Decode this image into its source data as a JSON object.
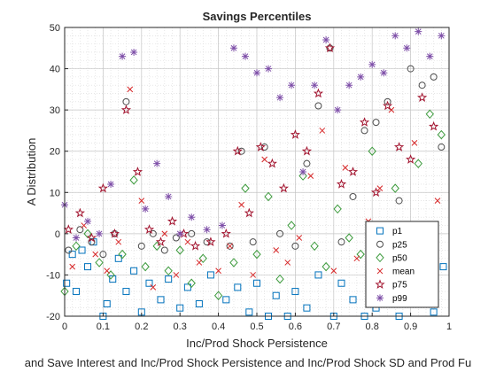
{
  "chart_data": {
    "type": "scatter",
    "title": "Savings Percentiles",
    "xlabel": "Inc/Prod Shock Persistence",
    "ylabel": "A Distribution",
    "caption": "and Save Interest and Inc/Prod Shock Persistence and Inc/Prod Shock SD and Prod Fu",
    "xlim": [
      0,
      1
    ],
    "ylim": [
      -20,
      50
    ],
    "xticks": [
      "0",
      "0.1",
      "0.2",
      "0.3",
      "0.4",
      "0.5",
      "0.6",
      "0.7",
      "0.8",
      "0.9",
      "1"
    ],
    "yticks": [
      "-20",
      "-10",
      "0",
      "10",
      "20",
      "30",
      "40",
      "50"
    ],
    "grid": "on, with minor grid",
    "legend_position": "bottom-right inside axes",
    "series": [
      {
        "name": "p1",
        "marker": "square",
        "color": "#0072BD",
        "values": [
          [
            0.005,
            -12
          ],
          [
            0.02,
            -5
          ],
          [
            0.03,
            -14
          ],
          [
            0.045,
            -4
          ],
          [
            0.06,
            -8
          ],
          [
            0.075,
            -2
          ],
          [
            0.1,
            -20
          ],
          [
            0.11,
            -17
          ],
          [
            0.125,
            -11
          ],
          [
            0.14,
            -6
          ],
          [
            0.16,
            -14
          ],
          [
            0.18,
            -9
          ],
          [
            0.2,
            -19
          ],
          [
            0.22,
            -12
          ],
          [
            0.25,
            -16
          ],
          [
            0.27,
            -11
          ],
          [
            0.3,
            -18
          ],
          [
            0.32,
            -13
          ],
          [
            0.35,
            -17
          ],
          [
            0.38,
            -10
          ],
          [
            0.42,
            -16
          ],
          [
            0.45,
            -13
          ],
          [
            0.48,
            -19
          ],
          [
            0.5,
            -12
          ],
          [
            0.53,
            -20
          ],
          [
            0.55,
            -15
          ],
          [
            0.58,
            -20
          ],
          [
            0.6,
            -14
          ],
          [
            0.63,
            -18
          ],
          [
            0.66,
            -10
          ],
          [
            0.7,
            -20
          ],
          [
            0.72,
            -12
          ],
          [
            0.75,
            -16
          ],
          [
            0.78,
            -20
          ],
          [
            0.81,
            -18
          ],
          [
            0.84,
            -13
          ],
          [
            0.87,
            -20
          ],
          [
            0.9,
            -16
          ],
          [
            0.93,
            -12
          ],
          [
            0.96,
            -19
          ],
          [
            0.985,
            -8
          ]
        ]
      },
      {
        "name": "p25",
        "marker": "circle",
        "color": "#4D4D4D",
        "values": [
          [
            0.01,
            -4
          ],
          [
            0.04,
            1
          ],
          [
            0.07,
            -2
          ],
          [
            0.1,
            -5
          ],
          [
            0.13,
            0
          ],
          [
            0.16,
            32
          ],
          [
            0.2,
            -3
          ],
          [
            0.23,
            0
          ],
          [
            0.26,
            -4
          ],
          [
            0.29,
            -1
          ],
          [
            0.33,
            0
          ],
          [
            0.37,
            -2
          ],
          [
            0.43,
            -3
          ],
          [
            0.46,
            20
          ],
          [
            0.49,
            -2
          ],
          [
            0.52,
            21
          ],
          [
            0.56,
            0
          ],
          [
            0.6,
            -3
          ],
          [
            0.63,
            17
          ],
          [
            0.66,
            31
          ],
          [
            0.69,
            45
          ],
          [
            0.72,
            -2
          ],
          [
            0.75,
            9
          ],
          [
            0.78,
            25
          ],
          [
            0.81,
            27
          ],
          [
            0.84,
            32
          ],
          [
            0.87,
            8
          ],
          [
            0.9,
            40
          ],
          [
            0.93,
            36
          ],
          [
            0.96,
            38
          ],
          [
            0.98,
            21
          ]
        ]
      },
      {
        "name": "p50",
        "marker": "diamond",
        "color": "#3C9A3C",
        "values": [
          [
            0.0,
            -14
          ],
          [
            0.03,
            -3
          ],
          [
            0.06,
            0
          ],
          [
            0.09,
            -7
          ],
          [
            0.12,
            -10
          ],
          [
            0.15,
            -5
          ],
          [
            0.18,
            13
          ],
          [
            0.21,
            -8
          ],
          [
            0.24,
            -3
          ],
          [
            0.27,
            -9
          ],
          [
            0.3,
            -4
          ],
          [
            0.33,
            -12
          ],
          [
            0.36,
            -6
          ],
          [
            0.4,
            -15
          ],
          [
            0.44,
            -7
          ],
          [
            0.47,
            11
          ],
          [
            0.5,
            -5
          ],
          [
            0.53,
            9
          ],
          [
            0.56,
            -11
          ],
          [
            0.59,
            2
          ],
          [
            0.62,
            14
          ],
          [
            0.65,
            -3
          ],
          [
            0.68,
            -8
          ],
          [
            0.71,
            6
          ],
          [
            0.74,
            -1
          ],
          [
            0.77,
            -5
          ],
          [
            0.8,
            20
          ],
          [
            0.83,
            -10
          ],
          [
            0.86,
            11
          ],
          [
            0.89,
            -3
          ],
          [
            0.92,
            17
          ],
          [
            0.95,
            29
          ],
          [
            0.98,
            24
          ]
        ]
      },
      {
        "name": "mean",
        "marker": "x",
        "color": "#D62728",
        "values": [
          [
            0.02,
            -8
          ],
          [
            0.05,
            2
          ],
          [
            0.08,
            -5
          ],
          [
            0.11,
            -9
          ],
          [
            0.14,
            -2
          ],
          [
            0.17,
            35
          ],
          [
            0.2,
            8
          ],
          [
            0.23,
            -13
          ],
          [
            0.26,
            0
          ],
          [
            0.29,
            -10
          ],
          [
            0.32,
            -2
          ],
          [
            0.35,
            -7
          ],
          [
            0.4,
            -9
          ],
          [
            0.43,
            -3
          ],
          [
            0.46,
            7
          ],
          [
            0.49,
            -10
          ],
          [
            0.52,
            18
          ],
          [
            0.55,
            -4
          ],
          [
            0.58,
            -7
          ],
          [
            0.61,
            -1
          ],
          [
            0.64,
            14
          ],
          [
            0.67,
            25
          ],
          [
            0.7,
            -9
          ],
          [
            0.73,
            16
          ],
          [
            0.76,
            -6
          ],
          [
            0.79,
            3
          ],
          [
            0.82,
            11
          ],
          [
            0.85,
            30
          ],
          [
            0.88,
            -4
          ],
          [
            0.91,
            22
          ],
          [
            0.94,
            -11
          ],
          [
            0.97,
            8
          ]
        ]
      },
      {
        "name": "p75",
        "marker": "pentagram",
        "color": "#A2142F",
        "values": [
          [
            0.01,
            1
          ],
          [
            0.04,
            5
          ],
          [
            0.07,
            -1
          ],
          [
            0.1,
            11
          ],
          [
            0.13,
            0
          ],
          [
            0.16,
            30
          ],
          [
            0.19,
            15
          ],
          [
            0.22,
            1
          ],
          [
            0.25,
            -2
          ],
          [
            0.28,
            3
          ],
          [
            0.31,
            0
          ],
          [
            0.34,
            -3
          ],
          [
            0.38,
            -2
          ],
          [
            0.42,
            0
          ],
          [
            0.45,
            20
          ],
          [
            0.48,
            5
          ],
          [
            0.51,
            21
          ],
          [
            0.54,
            17
          ],
          [
            0.57,
            11
          ],
          [
            0.6,
            24
          ],
          [
            0.63,
            20
          ],
          [
            0.66,
            34
          ],
          [
            0.69,
            45
          ],
          [
            0.72,
            12
          ],
          [
            0.75,
            15
          ],
          [
            0.78,
            27
          ],
          [
            0.81,
            10
          ],
          [
            0.84,
            31
          ],
          [
            0.87,
            21
          ],
          [
            0.9,
            18
          ],
          [
            0.93,
            33
          ],
          [
            0.96,
            26
          ]
        ]
      },
      {
        "name": "p99",
        "marker": "asterisk",
        "color": "#7E4FA8",
        "values": [
          [
            0.0,
            7
          ],
          [
            0.03,
            -1
          ],
          [
            0.06,
            3
          ],
          [
            0.09,
            0
          ],
          [
            0.12,
            12
          ],
          [
            0.15,
            43
          ],
          [
            0.18,
            44
          ],
          [
            0.21,
            6
          ],
          [
            0.24,
            17
          ],
          [
            0.27,
            9
          ],
          [
            0.3,
            0
          ],
          [
            0.33,
            4
          ],
          [
            0.37,
            1
          ],
          [
            0.41,
            2
          ],
          [
            0.44,
            45
          ],
          [
            0.47,
            43
          ],
          [
            0.5,
            39
          ],
          [
            0.53,
            40
          ],
          [
            0.56,
            33
          ],
          [
            0.59,
            36
          ],
          [
            0.62,
            15
          ],
          [
            0.65,
            36
          ],
          [
            0.68,
            47
          ],
          [
            0.71,
            30
          ],
          [
            0.74,
            36
          ],
          [
            0.77,
            38
          ],
          [
            0.8,
            41
          ],
          [
            0.83,
            39
          ],
          [
            0.86,
            48
          ],
          [
            0.89,
            45
          ],
          [
            0.92,
            49
          ],
          [
            0.95,
            43
          ],
          [
            0.98,
            48
          ]
        ]
      }
    ]
  }
}
